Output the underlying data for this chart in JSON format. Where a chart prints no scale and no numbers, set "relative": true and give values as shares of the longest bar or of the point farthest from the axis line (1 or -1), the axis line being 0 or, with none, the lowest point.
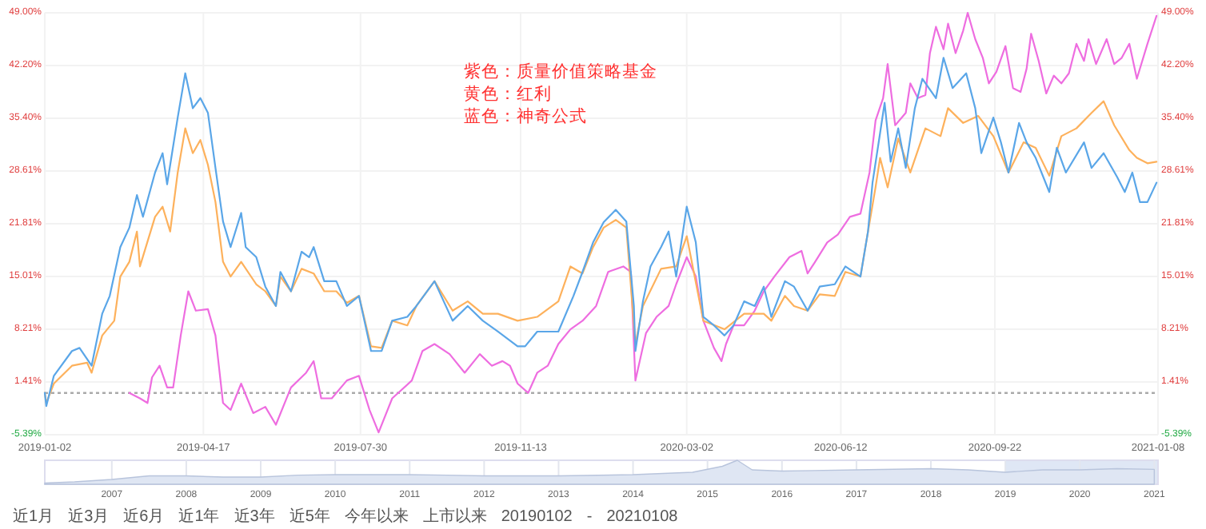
{
  "chart_data": [
    {
      "type": "line",
      "annotations": [
        "紫色：质量价值策略基金",
        "黄色：红利",
        "蓝色：神奇公式"
      ],
      "xlim": [
        "2019-01-02",
        "2021-01-08"
      ],
      "xticks": [
        "2019-01-02",
        "2019-04-17",
        "2019-07-30",
        "2019-11-13",
        "2020-03-02",
        "2020-06-12",
        "2020-09-22",
        "2021-01-08"
      ],
      "ylim": [
        -5.39,
        49.0
      ],
      "yticks": [
        {
          "value": -5.39,
          "label": "-5.39%"
        },
        {
          "value": 1.41,
          "label": "1.41%"
        },
        {
          "value": 8.21,
          "label": "8.21%"
        },
        {
          "value": 15.01,
          "label": "15.01%"
        },
        {
          "value": 21.81,
          "label": "21.81%"
        },
        {
          "value": 28.61,
          "label": "28.61%"
        },
        {
          "value": 35.4,
          "label": "35.40%"
        },
        {
          "value": 42.2,
          "label": "42.20%"
        },
        {
          "value": 49.0,
          "label": "49.00%"
        }
      ],
      "y2lim": [
        -5.39,
        49.0
      ],
      "y2ticks": [
        {
          "value": -5.39,
          "label": "-5.39%"
        },
        {
          "value": 1.41,
          "label": "1.41%"
        },
        {
          "value": 8.21,
          "label": "8.21%"
        },
        {
          "value": 15.01,
          "label": "15.01%"
        },
        {
          "value": 21.81,
          "label": "21.81%"
        },
        {
          "value": 28.61,
          "label": "28.61%"
        },
        {
          "value": 35.4,
          "label": "35.40%"
        },
        {
          "value": 42.2,
          "label": "42.20%"
        },
        {
          "value": 49.0,
          "label": "49.00%"
        }
      ],
      "grid": true,
      "ref_lines": [
        {
          "axis": "y",
          "value": 0,
          "color": "#aaaaaa",
          "line_style": "dotted"
        }
      ],
      "series": [
        {
          "color": "#ee6de0",
          "x": [
            "2019-02-27",
            "2019-03-06",
            "2019-03-11",
            "2019-03-14",
            "2019-03-19",
            "2019-03-24",
            "2019-03-28",
            "2019-04-02",
            "2019-04-07",
            "2019-04-12",
            "2019-04-20",
            "2019-04-25",
            "2019-04-30",
            "2019-05-05",
            "2019-05-12",
            "2019-05-20",
            "2019-05-28",
            "2019-06-04",
            "2019-06-14",
            "2019-06-24",
            "2019-06-29",
            "2019-07-04",
            "2019-07-11",
            "2019-07-21",
            "2019-07-29",
            "2019-08-05",
            "2019-08-11",
            "2019-08-20",
            "2019-09-02",
            "2019-09-09",
            "2019-09-17",
            "2019-09-27",
            "2019-10-07",
            "2019-10-17",
            "2019-10-25",
            "2019-11-01",
            "2019-11-06",
            "2019-11-11",
            "2019-11-18",
            "2019-11-24",
            "2019-12-01",
            "2019-12-08",
            "2019-12-16",
            "2019-12-24",
            "2020-01-02",
            "2020-01-10",
            "2020-01-20",
            "2020-01-25",
            "2020-01-28",
            "2020-02-04",
            "2020-02-11",
            "2020-02-19",
            "2020-02-24",
            "2020-03-02",
            "2020-03-08",
            "2020-03-13",
            "2020-03-20",
            "2020-03-25",
            "2020-03-28",
            "2020-04-02",
            "2020-04-09",
            "2020-04-16",
            "2020-04-22",
            "2020-04-29",
            "2020-05-09",
            "2020-05-17",
            "2020-05-21",
            "2020-05-26",
            "2020-06-03",
            "2020-06-10",
            "2020-06-18",
            "2020-06-25",
            "2020-07-01",
            "2020-07-05",
            "2020-07-10",
            "2020-07-13",
            "2020-07-18",
            "2020-07-25",
            "2020-07-28",
            "2020-08-02",
            "2020-08-07",
            "2020-08-10",
            "2020-08-14",
            "2020-08-19",
            "2020-08-22",
            "2020-08-27",
            "2020-09-01",
            "2020-09-04",
            "2020-09-09",
            "2020-09-14",
            "2020-09-18",
            "2020-09-23",
            "2020-09-29",
            "2020-10-04",
            "2020-10-09",
            "2020-10-13",
            "2020-10-16",
            "2020-10-21",
            "2020-10-26",
            "2020-10-31",
            "2020-11-05",
            "2020-11-10",
            "2020-11-15",
            "2020-11-20",
            "2020-11-23",
            "2020-11-28",
            "2020-12-05",
            "2020-12-10",
            "2020-12-15",
            "2020-12-20",
            "2020-12-25",
            "2021-01-01",
            "2021-01-07"
          ],
          "values": [
            0,
            -0.7,
            -1.3,
            2.0,
            3.5,
            0.7,
            0.7,
            7.4,
            13.1,
            10.6,
            10.8,
            7.4,
            -1.3,
            -2.2,
            1.2,
            -2.6,
            -1.8,
            -4.1,
            0.7,
            2.6,
            4.1,
            -0.7,
            -0.7,
            1.6,
            2.2,
            -2.2,
            -5.1,
            -0.7,
            1.6,
            5.4,
            6.3,
            5.0,
            2.6,
            5.0,
            3.5,
            4.1,
            3.5,
            1.2,
            0.0,
            2.6,
            3.5,
            6.3,
            8.2,
            9.3,
            11.2,
            15.6,
            16.3,
            15.6,
            1.6,
            7.7,
            9.8,
            11.2,
            14.0,
            17.5,
            15.0,
            9.3,
            5.8,
            4.1,
            6.3,
            8.7,
            8.7,
            10.6,
            13.1,
            15.0,
            17.5,
            18.3,
            15.4,
            16.9,
            19.4,
            20.4,
            22.7,
            23.1,
            28.4,
            35.1,
            38.0,
            42.4,
            34.5,
            36.1,
            39.9,
            38.0,
            38.4,
            43.8,
            47.2,
            44.3,
            47.6,
            43.8,
            46.7,
            49.0,
            45.6,
            43.2,
            39.9,
            41.4,
            44.7,
            39.3,
            38.8,
            41.8,
            46.3,
            42.8,
            38.6,
            40.9,
            39.9,
            41.2,
            45.0,
            42.8,
            45.6,
            42.4,
            45.6,
            42.4,
            43.2,
            45.0,
            40.5,
            45.0,
            48.6
          ]
        },
        {
          "color": "#fdb15c",
          "x": [
            "2019-01-02",
            "2019-01-03",
            "2019-01-08",
            "2019-01-20",
            "2019-01-30",
            "2019-02-02",
            "2019-02-09",
            "2019-02-17",
            "2019-02-21",
            "2019-02-27",
            "2019-03-04",
            "2019-03-06",
            "2019-03-16",
            "2019-03-21",
            "2019-03-26",
            "2019-03-31",
            "2019-04-05",
            "2019-04-10",
            "2019-04-15",
            "2019-04-20",
            "2019-04-25",
            "2019-04-30",
            "2019-05-05",
            "2019-05-12",
            "2019-05-22",
            "2019-05-28",
            "2019-06-04",
            "2019-06-07",
            "2019-06-14",
            "2019-06-21",
            "2019-06-29",
            "2019-07-06",
            "2019-07-14",
            "2019-07-21",
            "2019-07-29",
            "2019-08-06",
            "2019-08-13",
            "2019-08-20",
            "2019-08-30",
            "2019-09-05",
            "2019-09-17",
            "2019-09-29",
            "2019-10-09",
            "2019-10-19",
            "2019-10-29",
            "2019-11-11",
            "2019-11-24",
            "2019-12-08",
            "2019-12-16",
            "2019-12-24",
            "2019-12-31",
            "2020-01-07",
            "2020-01-15",
            "2020-01-22",
            "2020-01-28",
            "2020-02-02",
            "2020-02-14",
            "2020-02-24",
            "2020-03-02",
            "2020-03-13",
            "2020-03-27",
            "2020-04-09",
            "2020-04-22",
            "2020-04-27",
            "2020-05-06",
            "2020-05-12",
            "2020-05-21",
            "2020-05-29",
            "2020-06-08",
            "2020-06-15",
            "2020-06-25",
            "2020-06-30",
            "2020-07-05",
            "2020-07-08",
            "2020-07-13",
            "2020-07-20",
            "2020-07-28",
            "2020-08-07",
            "2020-08-17",
            "2020-08-22",
            "2020-09-01",
            "2020-09-11",
            "2020-09-21",
            "2020-10-01",
            "2020-10-11",
            "2020-10-19",
            "2020-10-28",
            "2020-11-05",
            "2020-11-15",
            "2020-11-25",
            "2020-12-03",
            "2020-12-10",
            "2020-12-20",
            "2020-12-25",
            "2021-01-01",
            "2021-01-07"
          ],
          "values": [
            0,
            -1.3,
            1.2,
            3.5,
            3.9,
            2.6,
            7.4,
            9.3,
            15.0,
            16.9,
            20.8,
            16.3,
            22.7,
            24.0,
            20.8,
            28.4,
            34.1,
            30.9,
            32.6,
            29.4,
            24.6,
            16.9,
            15.0,
            16.9,
            14.0,
            13.1,
            11.2,
            15.0,
            13.1,
            16.0,
            15.4,
            13.1,
            13.1,
            11.6,
            12.5,
            6.0,
            5.8,
            9.3,
            8.7,
            11.2,
            14.4,
            10.6,
            11.8,
            10.2,
            10.2,
            9.3,
            9.8,
            11.8,
            16.3,
            15.4,
            18.8,
            21.3,
            22.3,
            21.3,
            6.3,
            11.2,
            16.0,
            16.3,
            20.2,
            9.3,
            8.2,
            10.2,
            10.2,
            9.3,
            12.5,
            11.2,
            10.6,
            12.7,
            12.5,
            15.6,
            15.0,
            20.8,
            26.5,
            30.3,
            26.5,
            32.8,
            28.4,
            34.1,
            33.1,
            36.7,
            34.8,
            35.7,
            33.1,
            28.4,
            32.3,
            31.6,
            28.0,
            33.1,
            34.1,
            36.1,
            37.6,
            34.5,
            31.3,
            30.3,
            29.6,
            29.8
          ]
        },
        {
          "color": "#5aa6e8",
          "x": [
            "2019-01-02",
            "2019-01-03",
            "2019-01-08",
            "2019-01-20",
            "2019-01-25",
            "2019-02-02",
            "2019-02-09",
            "2019-02-14",
            "2019-02-21",
            "2019-02-27",
            "2019-03-04",
            "2019-03-08",
            "2019-03-16",
            "2019-03-21",
            "2019-03-24",
            "2019-03-31",
            "2019-04-05",
            "2019-04-10",
            "2019-04-15",
            "2019-04-20",
            "2019-04-25",
            "2019-04-30",
            "2019-05-05",
            "2019-05-12",
            "2019-05-15",
            "2019-05-22",
            "2019-05-28",
            "2019-06-04",
            "2019-06-07",
            "2019-06-14",
            "2019-06-21",
            "2019-06-26",
            "2019-06-29",
            "2019-07-06",
            "2019-07-14",
            "2019-07-21",
            "2019-07-29",
            "2019-08-06",
            "2019-08-13",
            "2019-08-20",
            "2019-08-30",
            "2019-09-05",
            "2019-09-17",
            "2019-09-29",
            "2019-10-09",
            "2019-10-19",
            "2019-10-29",
            "2019-11-11",
            "2019-11-16",
            "2019-11-24",
            "2019-12-08",
            "2019-12-18",
            "2019-12-24",
            "2019-12-31",
            "2020-01-07",
            "2020-01-15",
            "2020-01-22",
            "2020-01-27",
            "2020-01-28",
            "2020-02-02",
            "2020-02-07",
            "2020-02-14",
            "2020-02-19",
            "2020-02-24",
            "2020-03-02",
            "2020-03-08",
            "2020-03-13",
            "2020-03-20",
            "2020-03-27",
            "2020-04-02",
            "2020-04-09",
            "2020-04-16",
            "2020-04-22",
            "2020-04-27",
            "2020-05-06",
            "2020-05-12",
            "2020-05-21",
            "2020-05-29",
            "2020-06-08",
            "2020-06-15",
            "2020-06-25",
            "2020-06-30",
            "2020-07-03",
            "2020-07-08",
            "2020-07-11",
            "2020-07-15",
            "2020-07-20",
            "2020-07-25",
            "2020-07-31",
            "2020-08-05",
            "2020-08-14",
            "2020-08-19",
            "2020-08-25",
            "2020-09-03",
            "2020-09-09",
            "2020-09-13",
            "2020-09-21",
            "2020-09-26",
            "2020-10-01",
            "2020-10-08",
            "2020-10-13",
            "2020-10-19",
            "2020-10-28",
            "2020-11-02",
            "2020-11-08",
            "2020-11-20",
            "2020-11-25",
            "2020-12-03",
            "2020-12-12",
            "2020-12-17",
            "2020-12-22",
            "2020-12-27",
            "2021-01-01",
            "2021-01-07"
          ],
          "values": [
            0,
            -1.7,
            2.2,
            5.4,
            5.8,
            3.5,
            10.2,
            12.5,
            18.8,
            21.3,
            25.5,
            22.7,
            28.4,
            30.9,
            26.9,
            35.5,
            41.2,
            36.7,
            38.0,
            36.1,
            29.0,
            22.1,
            18.8,
            23.2,
            18.8,
            17.5,
            13.7,
            11.2,
            15.6,
            13.1,
            18.2,
            17.5,
            18.8,
            14.4,
            14.4,
            11.2,
            12.5,
            5.4,
            5.4,
            9.3,
            9.8,
            11.2,
            14.4,
            9.3,
            11.2,
            9.3,
            7.9,
            6.0,
            6.0,
            7.9,
            7.9,
            12.5,
            15.6,
            19.4,
            22.0,
            23.6,
            22.1,
            11.2,
            5.4,
            11.8,
            16.3,
            18.8,
            20.8,
            15.0,
            24.0,
            19.4,
            9.8,
            8.7,
            7.4,
            8.7,
            11.8,
            11.2,
            13.7,
            9.8,
            14.4,
            13.7,
            10.6,
            13.7,
            14.0,
            16.3,
            15.0,
            20.8,
            27.1,
            33.5,
            37.4,
            29.8,
            34.1,
            29.0,
            36.7,
            40.5,
            38.0,
            43.2,
            39.3,
            41.2,
            36.7,
            30.9,
            35.5,
            32.3,
            28.4,
            34.8,
            32.3,
            30.3,
            25.9,
            31.6,
            28.4,
            32.3,
            29.0,
            30.9,
            27.8,
            25.9,
            28.4,
            24.6,
            24.6,
            27.1
          ]
        }
      ]
    },
    {
      "type": "area",
      "relative": true,
      "color": "#dfe6f3",
      "tick_labels": "x",
      "grid": "x",
      "x": [
        2006.1,
        2006.5,
        2007,
        2007.5,
        2008,
        2008.5,
        2009,
        2009.5,
        2010,
        2011,
        2011.5,
        2012,
        2013,
        2014,
        2014.8,
        2015.2,
        2015.4,
        2015.6,
        2016,
        2017,
        2018,
        2018.5,
        2019,
        2019.5,
        2020,
        2020.5,
        2021
      ],
      "values": [
        0.05,
        0.1,
        0.2,
        0.35,
        0.35,
        0.3,
        0.3,
        0.38,
        0.4,
        0.4,
        0.38,
        0.35,
        0.35,
        0.4,
        0.5,
        0.75,
        1.0,
        0.6,
        0.55,
        0.6,
        0.65,
        0.6,
        0.5,
        0.6,
        0.6,
        0.65,
        0.62
      ],
      "xlim": [
        2006.1,
        2021.05
      ],
      "xticks": [
        2007,
        2008,
        2009,
        2010,
        2011,
        2012,
        2013,
        2014,
        2015,
        2016,
        2017,
        2018,
        2019,
        2020,
        2021
      ],
      "bands": [
        {
          "axis": "x",
          "from": 2019.0,
          "to": 2021.05,
          "color": "#c9d7ee"
        }
      ],
      "annotations": [
        "近1月",
        "近3月",
        "近6月",
        "近1年",
        "近3年",
        "近5年",
        "今年以来",
        "上市以来",
        "20190102",
        "-",
        "20210108"
      ]
    }
  ]
}
